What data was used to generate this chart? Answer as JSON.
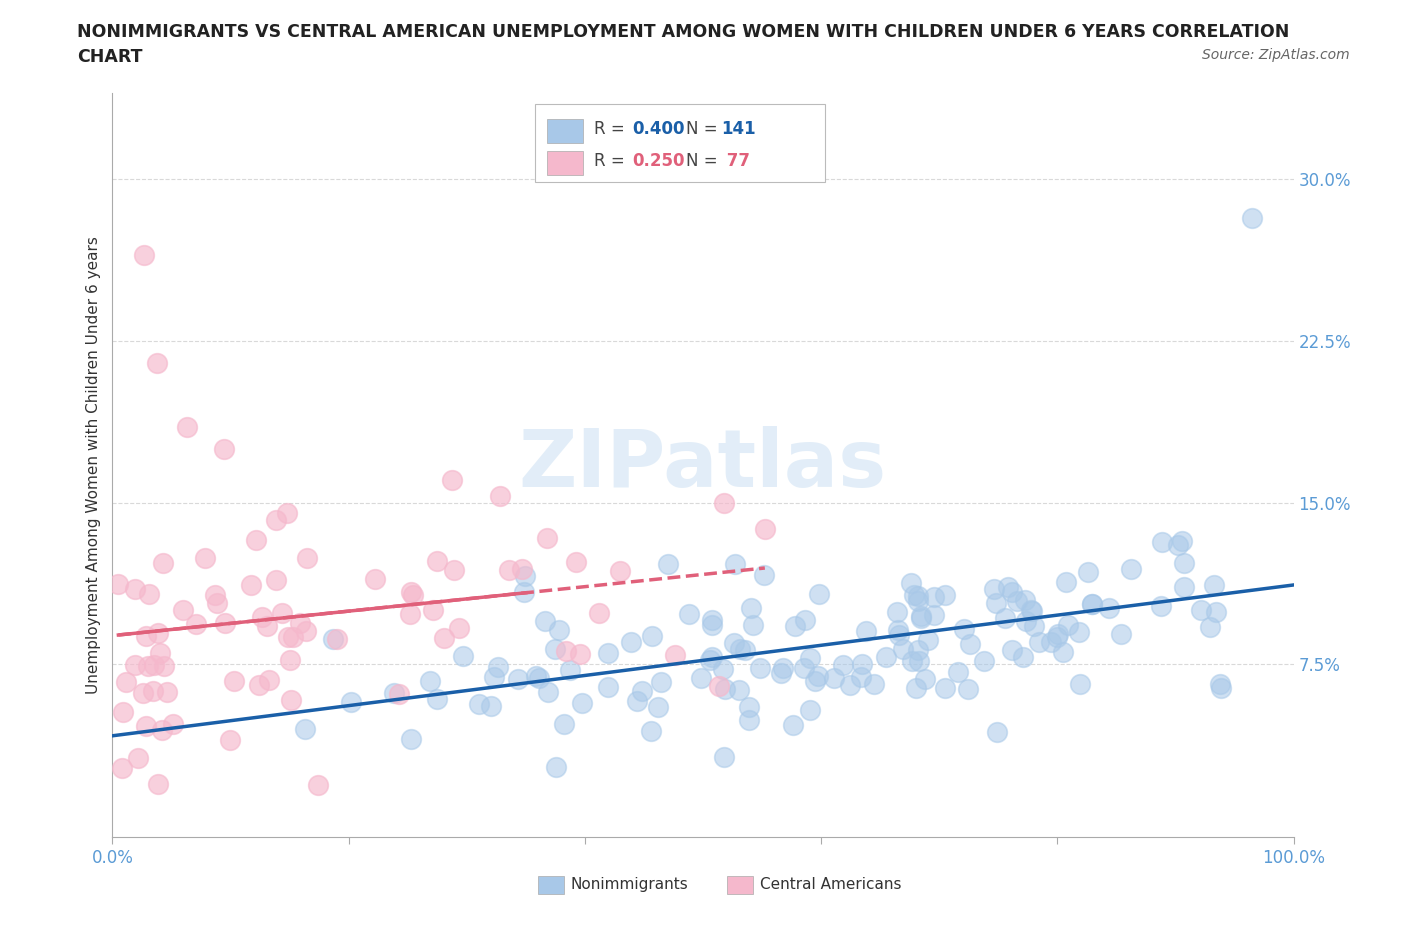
{
  "title_line1": "NONIMMIGRANTS VS CENTRAL AMERICAN UNEMPLOYMENT AMONG WOMEN WITH CHILDREN UNDER 6 YEARS CORRELATION",
  "title_line2": "CHART",
  "source_text": "Source: ZipAtlas.com",
  "ylabel": "Unemployment Among Women with Children Under 6 years",
  "xlim": [
    0.0,
    1.0
  ],
  "ylim": [
    -0.005,
    0.34
  ],
  "yticks": [
    0.075,
    0.15,
    0.225,
    0.3
  ],
  "yticklabels": [
    "7.5%",
    "15.0%",
    "22.5%",
    "30.0%"
  ],
  "nonimmigrant_color": "#a8c8e8",
  "central_american_color": "#f5b8cc",
  "nonimmigrant_line_color": "#1a5fa8",
  "central_american_line_color": "#e0607a",
  "r_nonimmigrant": 0.4,
  "n_nonimmigrant": 141,
  "r_central_american": 0.25,
  "n_central_american": 77,
  "watermark": "ZIPatlas",
  "background_color": "#ffffff",
  "grid_color": "#d0d0d0",
  "legend_label_1": "Nonimmigrants",
  "legend_label_2": "Central Americans",
  "title_color": "#222222",
  "axis_tick_color": "#5b9bd5",
  "seed": 42
}
